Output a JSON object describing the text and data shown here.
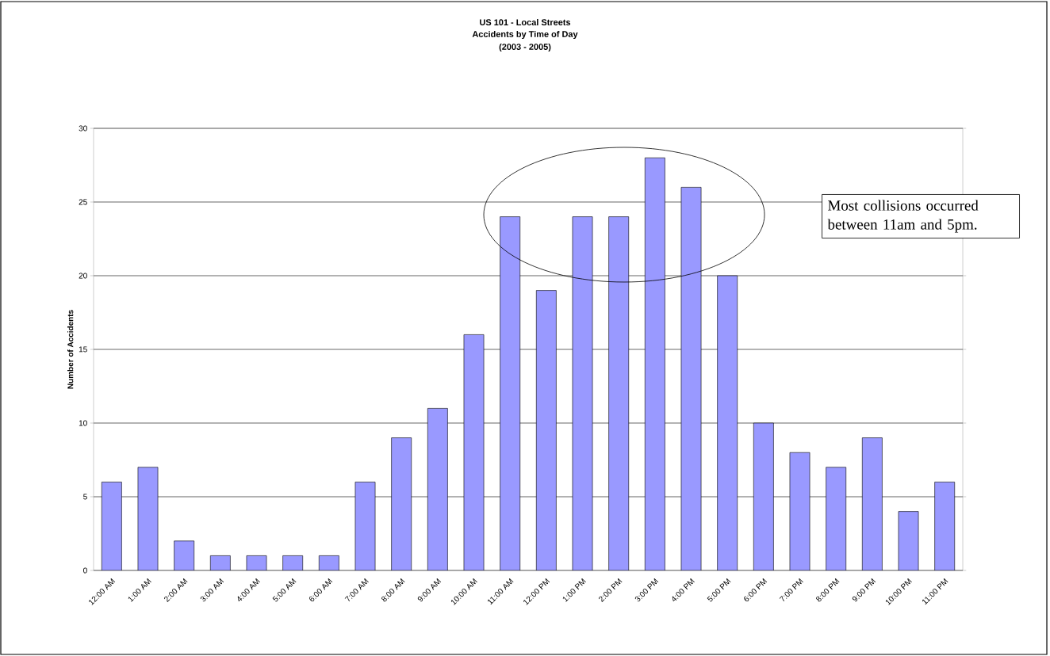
{
  "chart_data": {
    "type": "bar",
    "title": "US 101 - Local Streets",
    "subtitle": "Accidents by Time of Day",
    "ylabel": "Number of Accidents",
    "categories": [
      "12:00 AM",
      "1:00 AM",
      "2:00 AM",
      "3:00 AM",
      "4:00 AM",
      "5:00 AM",
      "6:00 AM",
      "7:00 AM",
      "8:00 AM",
      "9:00 AM",
      "10:00 AM",
      "11:00 AM",
      "12:00 PM",
      "1:00 PM",
      "2:00 PM",
      "3:00 PM",
      "4:00 PM",
      "5:00 PM",
      "6:00 PM",
      "7:00 PM",
      "8:00 PM",
      "9:00 PM",
      "10:00 PM",
      "11:00 PM"
    ],
    "values": [
      6,
      7,
      2,
      1,
      1,
      1,
      1,
      6,
      9,
      11,
      16,
      24,
      19,
      24,
      24,
      28,
      26,
      20,
      10,
      8,
      7,
      9,
      4,
      6
    ],
    "color": "#9999ff",
    "ylim": [
      0,
      30
    ],
    "yticks": [
      0,
      5,
      10,
      15,
      20,
      25,
      30
    ],
    "grid": "y",
    "annotations": [
      "(2003 - 2005)",
      "Most collisions occurred between 11am and 5pm."
    ]
  }
}
